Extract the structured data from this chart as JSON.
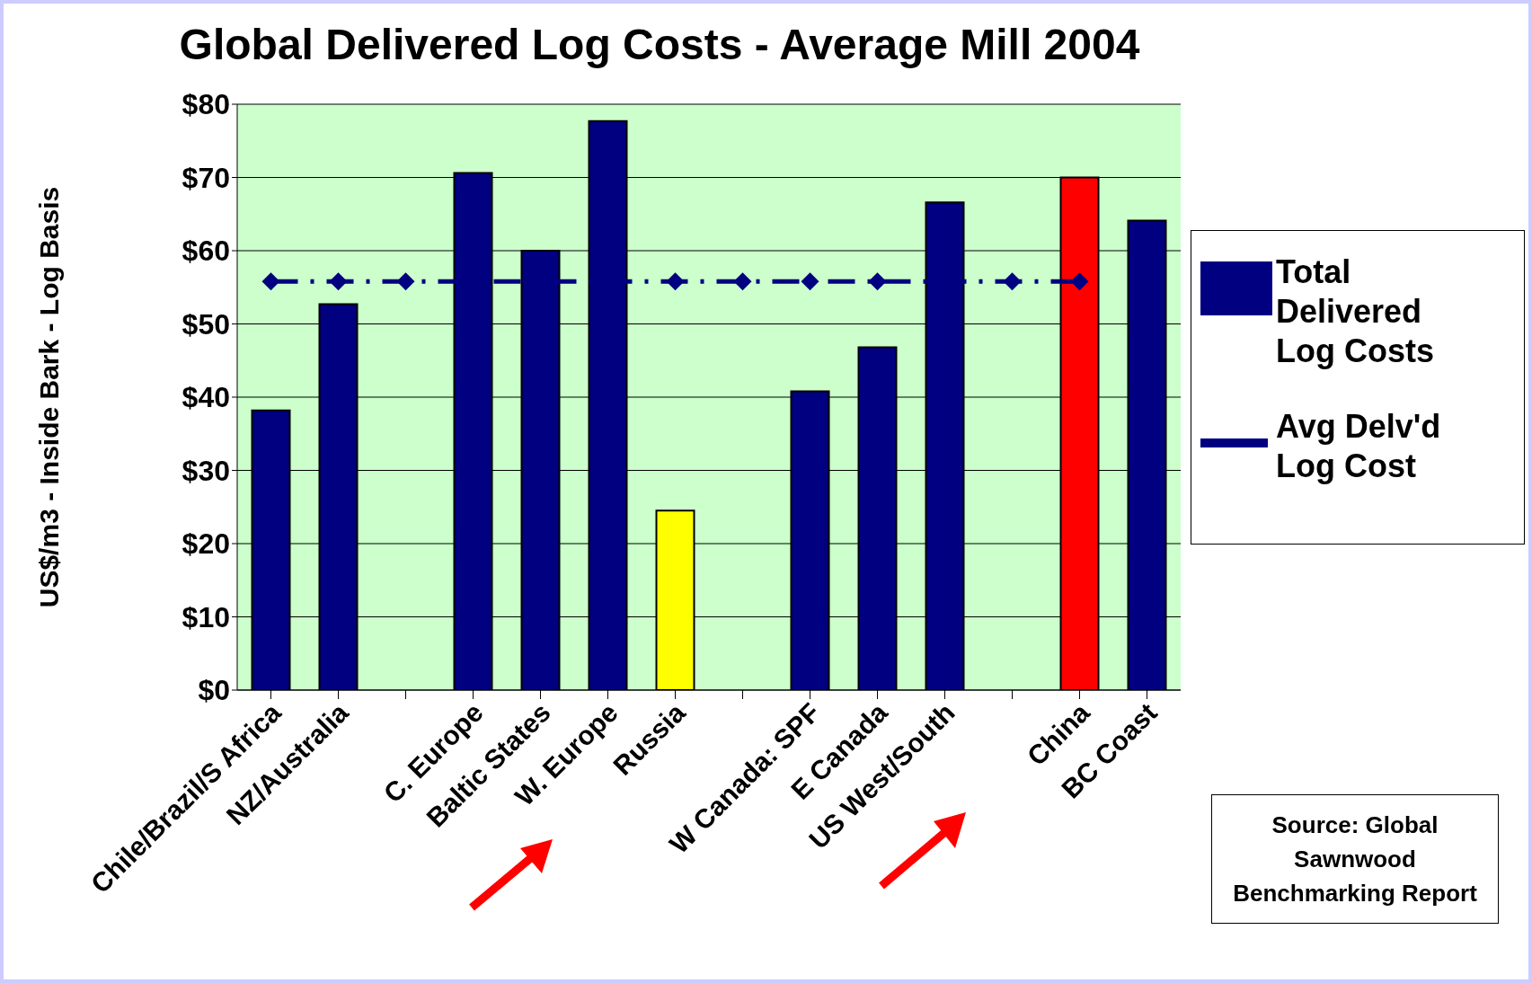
{
  "chart_data": {
    "type": "bar",
    "title": "Global Delivered Log Costs - Average Mill 2004",
    "ylabel": "US$/m3 - Inside Bark - Log Basis",
    "categories": [
      "Chile/Brazil/S Africa",
      "NZ/Australia",
      null,
      "C. Europe",
      "Baltic States",
      "W. Europe",
      "Russia",
      null,
      "W Canada: SPF",
      "E Canada",
      "US West/South",
      null,
      "China",
      "BC Coast"
    ],
    "series": [
      {
        "name": "Total Delivered Log Costs",
        "color": "#000080",
        "colors": [
          "#000080",
          "#000080",
          "#000080",
          "#000080",
          "#000080",
          "#000080",
          "#ffff00",
          "#000080",
          "#000080",
          "#000080",
          "#000080",
          "#000080",
          "#ff0000",
          "#000080"
        ],
        "values": [
          38.2,
          52.7,
          null,
          70.6,
          60,
          77.7,
          24.5,
          null,
          40.8,
          46.8,
          66.6,
          null,
          70,
          64.1
        ]
      },
      {
        "name": "Avg Delv'd Log Cost",
        "type": "line",
        "color": "#000080",
        "line_style": "dashed",
        "marker": "diamond",
        "values": [
          55.8,
          55.8,
          55.8,
          55.8,
          55.8,
          55.8,
          55.8,
          55.8,
          55.8,
          55.8,
          55.8,
          55.8,
          55.8,
          null
        ]
      }
    ],
    "ylim": [
      0,
      80
    ],
    "yticks": [
      {
        "value": 0,
        "label": "$0"
      },
      {
        "value": 10,
        "label": "$10"
      },
      {
        "value": 20,
        "label": "$20"
      },
      {
        "value": 30,
        "label": "$30"
      },
      {
        "value": 40,
        "label": "$40"
      },
      {
        "value": 50,
        "label": "$50"
      },
      {
        "value": 60,
        "label": "$60"
      },
      {
        "value": 70,
        "label": "$70"
      },
      {
        "value": 80,
        "label": "$80"
      }
    ],
    "grid": "y",
    "legend": "right",
    "annotations": [
      "Source: Global Sawnwood Benchmarking Report"
    ]
  }
}
